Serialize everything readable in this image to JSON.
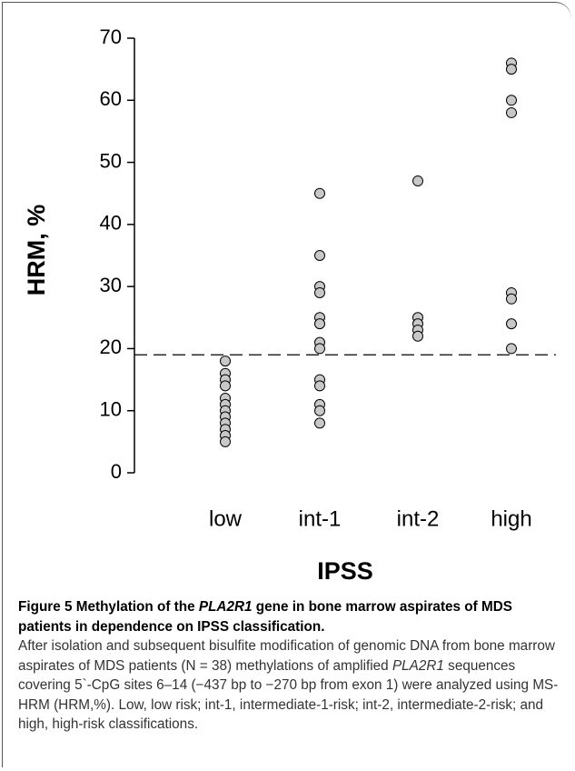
{
  "chart_data": {
    "type": "strip",
    "x_label": "IPSS",
    "y_label": "HRM, %",
    "categories": [
      "low",
      "int-1",
      "int-2",
      "high"
    ],
    "values": [
      [
        18,
        16,
        15,
        14,
        12,
        11,
        10,
        9,
        8,
        7,
        6,
        5
      ],
      [
        45,
        35,
        30,
        29,
        25,
        24,
        21,
        20,
        15,
        14,
        11,
        10,
        8
      ],
      [
        47,
        25,
        24,
        23,
        22
      ],
      [
        66,
        65,
        60,
        58,
        29,
        28,
        24,
        20
      ]
    ],
    "color": "#c8c8c8",
    "threshold": 19,
    "ylim": [
      0,
      70
    ],
    "yticks": [
      0,
      10,
      20,
      30,
      40,
      50,
      60,
      70
    ]
  },
  "caption": {
    "title": [
      "Figure 5 Methylation of the ",
      "PLA2R1",
      " gene in bone marrow aspirates of MDS patients in dependence on IPSS classification."
    ],
    "body": [
      "After isolation and subsequent bisulfite modification of genomic DNA from bone marrow aspirates of MDS patients (N = 38) methylations of amplified ",
      "PLA2R1",
      " sequences covering 5`-CpG sites 6–14 (−437 bp to −270 bp from exon 1) were analyzed using MS-HRM (HRM,%). Low, low risk; int-1, intermediate-1-risk; int-2, intermediate-2-risk; and high, high-risk classifications."
    ]
  }
}
